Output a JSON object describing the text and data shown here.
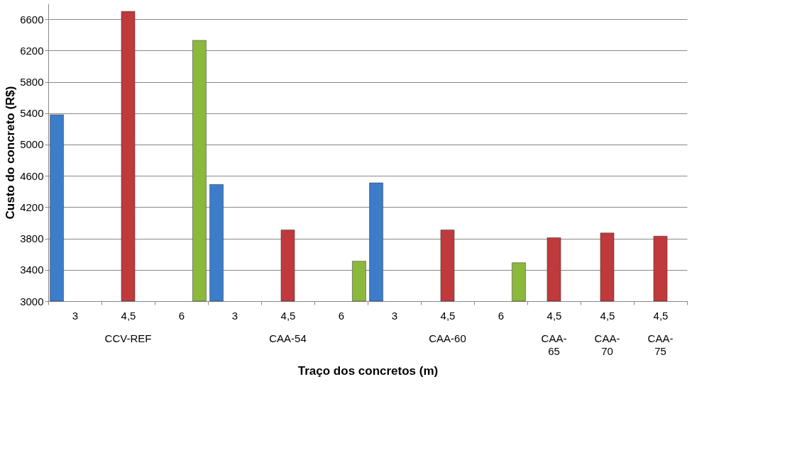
{
  "chart_data": {
    "type": "bar",
    "categories": [
      "3",
      "4,5",
      "6",
      "3",
      "4,5",
      "6",
      "3",
      "4,5",
      "6",
      "4,5",
      "4,5",
      "4,5"
    ],
    "series": [
      {
        "color": "#3d7cc9",
        "values": [
          5380,
          null,
          null,
          4490,
          null,
          null,
          4510,
          null,
          null,
          null,
          null,
          null
        ]
      },
      {
        "color": "#c0393b",
        "values": [
          null,
          6700,
          null,
          null,
          3910,
          null,
          null,
          3910,
          null,
          3810,
          3870,
          3830
        ]
      },
      {
        "color": "#8cb83c",
        "values": [
          null,
          null,
          6330,
          null,
          null,
          3510,
          null,
          null,
          3490,
          null,
          null,
          null
        ]
      }
    ],
    "xlabel": "Traço dos concretos (m)",
    "ylabel": "Custo do concreto (R$)",
    "ylim": [
      3000,
      6800
    ],
    "yticks": [
      3000,
      3400,
      3800,
      4200,
      4600,
      5000,
      5400,
      5800,
      6200,
      6600
    ],
    "grid": "y",
    "legend": false,
    "annotations": [
      "CCV-REF",
      "CAA-54",
      "CAA-60",
      "CAA-65",
      "CAA-70",
      "CAA-75"
    ]
  }
}
